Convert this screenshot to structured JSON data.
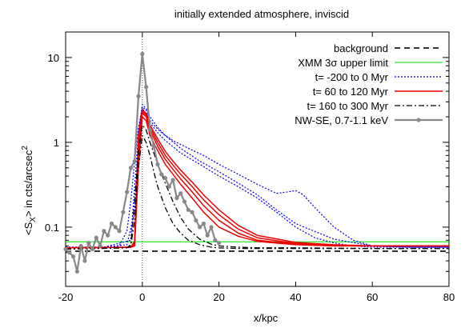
{
  "chart_data": {
    "type": "line",
    "title": "initially extended atmosphere, inviscid",
    "xlabel": "x/kpc",
    "ylabel": "<S_X> in cts/arcsec^2",
    "ylabel_parts": {
      "pre": "<S",
      "sub": "X",
      "mid": "> in cts/arcsec",
      "sup": "2"
    },
    "xlim": [
      -20,
      80
    ],
    "ylim": [
      0.02,
      20
    ],
    "yscale": "log",
    "xticks": [
      -20,
      0,
      20,
      40,
      60,
      80
    ],
    "xtick_labels": [
      "-20",
      "0",
      "20",
      "40",
      "60",
      "80"
    ],
    "yticks": [
      0.1,
      1,
      10
    ],
    "ytick_labels": [
      "0.1",
      "1",
      "10"
    ],
    "vline_x": 0,
    "legend_position": "top-right",
    "series": [
      {
        "name": "background",
        "color": "#333333",
        "dash": "7,5",
        "width": 2,
        "curves": [
          {
            "x": [
              -20,
              80
            ],
            "y": [
              0.052,
              0.052
            ]
          }
        ]
      },
      {
        "name": "XMM 3σ upper limit",
        "color": "#00dd00",
        "dash": "",
        "width": 1,
        "curves": [
          {
            "x": [
              -20,
              80
            ],
            "y": [
              0.067,
              0.067
            ]
          }
        ]
      },
      {
        "name": "t= -200 to 0 Myr",
        "color": "#0000ee",
        "dash": "2,2",
        "width": 1.2,
        "curves": [
          {
            "x": [
              -20,
              -10,
              -6,
              -4,
              -3,
              -2,
              -1,
              0,
              1,
              2,
              3,
              5,
              8,
              12,
              16,
              20,
              25,
              30,
              35,
              38,
              40,
              42,
              45,
              50,
              55,
              60,
              70,
              80
            ],
            "y": [
              0.058,
              0.058,
              0.06,
              0.09,
              0.2,
              0.6,
              1.5,
              2.5,
              2.2,
              1.8,
              1.6,
              1.3,
              1.05,
              0.85,
              0.7,
              0.55,
              0.42,
              0.32,
              0.25,
              0.26,
              0.27,
              0.24,
              0.17,
              0.1,
              0.07,
              0.06,
              0.058,
              0.058
            ]
          },
          {
            "x": [
              -20,
              -10,
              -4,
              -2,
              -1,
              0,
              1,
              2,
              4,
              6,
              10,
              15,
              20,
              25,
              30,
              35,
              40,
              45,
              50,
              55,
              60,
              70,
              80
            ],
            "y": [
              0.058,
              0.058,
              0.062,
              0.15,
              0.9,
              2.6,
              2.4,
              1.7,
              1.3,
              1.05,
              0.75,
              0.55,
              0.4,
              0.3,
              0.22,
              0.15,
              0.1,
              0.075,
              0.065,
              0.06,
              0.058,
              0.058,
              0.058
            ]
          },
          {
            "x": [
              -20,
              -10,
              -3,
              -2,
              -1,
              0,
              1,
              2,
              4,
              6,
              10,
              15,
              20,
              25,
              30,
              35,
              40,
              50,
              60,
              70,
              80
            ],
            "y": [
              0.058,
              0.058,
              0.07,
              0.3,
              1.3,
              2.8,
              2.5,
              2.0,
              1.5,
              1.2,
              0.85,
              0.6,
              0.45,
              0.33,
              0.24,
              0.16,
              0.11,
              0.072,
              0.06,
              0.058,
              0.058
            ]
          }
        ]
      },
      {
        "name": "t= 60 to 120 Myr",
        "color": "#ee0000",
        "dash": "",
        "width": 1.5,
        "curves": [
          {
            "x": [
              -20,
              -3,
              -2,
              -1,
              0,
              1,
              2,
              4,
              6,
              8,
              10,
              13,
              16,
              20,
              25,
              30,
              40,
              50,
              60,
              80
            ],
            "y": [
              0.057,
              0.058,
              0.06,
              0.5,
              2.0,
              1.8,
              1.2,
              0.8,
              0.55,
              0.42,
              0.32,
              0.22,
              0.15,
              0.1,
              0.078,
              0.068,
              0.062,
              0.06,
              0.06,
              0.06
            ]
          },
          {
            "x": [
              -20,
              -3,
              -2,
              -1,
              0,
              1,
              2,
              4,
              6,
              8,
              10,
              13,
              16,
              20,
              25,
              30,
              40,
              50,
              60,
              80
            ],
            "y": [
              0.057,
              0.058,
              0.062,
              0.7,
              2.2,
              2.0,
              1.4,
              0.9,
              0.63,
              0.48,
              0.37,
              0.26,
              0.18,
              0.12,
              0.085,
              0.07,
              0.063,
              0.06,
              0.06,
              0.06
            ]
          },
          {
            "x": [
              -20,
              -3,
              -2,
              -1,
              0,
              1,
              2,
              4,
              6,
              8,
              10,
              13,
              16,
              20,
              25,
              30,
              40,
              50,
              60,
              80
            ],
            "y": [
              0.057,
              0.058,
              0.065,
              1.0,
              2.3,
              2.1,
              1.5,
              1.0,
              0.7,
              0.54,
              0.42,
              0.3,
              0.21,
              0.14,
              0.095,
              0.075,
              0.064,
              0.061,
              0.06,
              0.06
            ]
          },
          {
            "x": [
              -20,
              -3,
              -2,
              -1,
              0,
              1,
              2,
              4,
              6,
              8,
              10,
              13,
              16,
              20,
              25,
              30,
              40,
              50,
              60,
              80
            ],
            "y": [
              0.057,
              0.058,
              0.068,
              1.2,
              2.4,
              2.2,
              1.6,
              1.1,
              0.78,
              0.6,
              0.47,
              0.34,
              0.24,
              0.16,
              0.105,
              0.08,
              0.066,
              0.062,
              0.06,
              0.06
            ]
          }
        ]
      },
      {
        "name": "t= 160 to 300 Myr",
        "color": "#000000",
        "dash": "7,3,2,3",
        "width": 1.3,
        "curves": [
          {
            "x": [
              -20,
              -4,
              -3,
              -2,
              -1,
              0,
              1,
              2,
              3,
              4,
              6,
              8,
              10,
              12,
              15,
              18,
              20,
              25,
              30,
              40,
              60,
              80
            ],
            "y": [
              0.055,
              0.057,
              0.06,
              0.12,
              0.5,
              1.2,
              1.0,
              0.7,
              0.45,
              0.3,
              0.17,
              0.11,
              0.085,
              0.07,
              0.062,
              0.058,
              0.057,
              0.056,
              0.056,
              0.056,
              0.056,
              0.056
            ]
          },
          {
            "x": [
              -20,
              -4,
              -3,
              -2,
              -1,
              0,
              1,
              2,
              3,
              4,
              6,
              8,
              10,
              12,
              15,
              18,
              20,
              25,
              30,
              40,
              60,
              80
            ],
            "y": [
              0.055,
              0.057,
              0.062,
              0.2,
              0.8,
              1.6,
              1.4,
              1.0,
              0.75,
              0.55,
              0.33,
              0.2,
              0.13,
              0.095,
              0.072,
              0.063,
              0.06,
              0.058,
              0.057,
              0.057,
              0.056,
              0.056
            ]
          }
        ]
      },
      {
        "name": "NW-SE, 0.7-1.1 keV",
        "color": "#888888",
        "dash": "",
        "width": 2.2,
        "markers": true,
        "curves": [
          {
            "x": [
              -20,
              -19,
              -18,
              -17,
              -16,
              -15,
              -14,
              -13,
              -12,
              -11,
              -10,
              -9,
              -8,
              -7,
              -6,
              -5,
              -4,
              -3,
              -2,
              -1,
              0,
              1,
              2,
              3,
              4,
              5,
              6,
              7,
              8,
              9,
              10,
              11,
              12,
              13,
              14,
              15,
              16,
              17,
              18,
              19,
              20
            ],
            "y": [
              0.055,
              0.05,
              0.045,
              0.03,
              0.06,
              0.04,
              0.065,
              0.055,
              0.075,
              0.06,
              0.09,
              0.08,
              0.11,
              0.1,
              0.09,
              0.15,
              0.26,
              0.5,
              0.6,
              3.5,
              11.0,
              4.5,
              1.4,
              0.9,
              0.55,
              0.42,
              0.38,
              0.3,
              0.36,
              0.22,
              0.25,
              0.2,
              0.16,
              0.15,
              0.12,
              0.1,
              0.11,
              0.08,
              0.1,
              0.07,
              0.065
            ]
          }
        ]
      }
    ]
  }
}
